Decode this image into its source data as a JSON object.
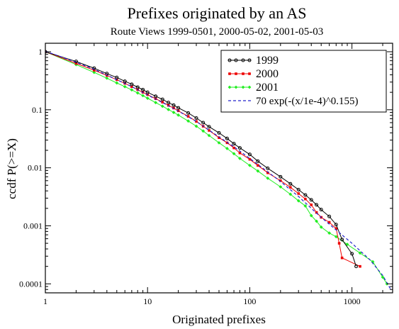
{
  "chart_data": {
    "type": "line",
    "title": "Prefixes originated by an AS",
    "subtitle": "Route Views 1999-0501, 2000-05-02, 2001-05-03",
    "xlabel": "Originated prefixes",
    "ylabel": "ccdf P(>=X)",
    "xscale": "log",
    "yscale": "log",
    "xlim": [
      1,
      2500
    ],
    "ylim": [
      7e-05,
      1.4
    ],
    "xticks": [
      1,
      10,
      100,
      1000
    ],
    "xtick_labels": [
      "1",
      "10",
      "100",
      "1000"
    ],
    "yticks": [
      1,
      0.1,
      0.01,
      0.001,
      0.0001
    ],
    "ytick_labels": [
      "1",
      "0.1",
      "0.01",
      "0.001",
      "0.0001"
    ],
    "grid": false,
    "legend_position": "top-right",
    "series": [
      {
        "name": "1999",
        "color": "#000000",
        "style": "solid-circles",
        "points": [
          [
            1,
            1
          ],
          [
            2,
            0.68
          ],
          [
            3,
            0.52
          ],
          [
            4,
            0.42
          ],
          [
            5,
            0.36
          ],
          [
            6,
            0.31
          ],
          [
            7,
            0.275
          ],
          [
            8,
            0.245
          ],
          [
            9,
            0.222
          ],
          [
            10,
            0.2
          ],
          [
            12,
            0.171
          ],
          [
            14,
            0.151
          ],
          [
            16,
            0.133
          ],
          [
            18,
            0.12
          ],
          [
            20,
            0.108
          ],
          [
            25,
            0.088
          ],
          [
            30,
            0.072
          ],
          [
            35,
            0.06
          ],
          [
            40,
            0.051
          ],
          [
            50,
            0.04
          ],
          [
            60,
            0.032
          ],
          [
            70,
            0.026
          ],
          [
            80,
            0.022
          ],
          [
            100,
            0.017
          ],
          [
            120,
            0.013
          ],
          [
            150,
            0.0098
          ],
          [
            200,
            0.007
          ],
          [
            250,
            0.0053
          ],
          [
            300,
            0.0042
          ],
          [
            350,
            0.0034
          ],
          [
            400,
            0.0028
          ],
          [
            450,
            0.0023
          ],
          [
            500,
            0.0019
          ],
          [
            600,
            0.00145
          ],
          [
            700,
            0.00105
          ],
          [
            800,
            0.00058
          ],
          [
            1000,
            0.00033
          ],
          [
            1100,
            0.0002
          ]
        ]
      },
      {
        "name": "2000",
        "color": "#ee0000",
        "style": "solid-squares",
        "points": [
          [
            1,
            1
          ],
          [
            2,
            0.63
          ],
          [
            3,
            0.48
          ],
          [
            4,
            0.39
          ],
          [
            5,
            0.33
          ],
          [
            6,
            0.285
          ],
          [
            7,
            0.25
          ],
          [
            8,
            0.222
          ],
          [
            9,
            0.2
          ],
          [
            10,
            0.182
          ],
          [
            12,
            0.155
          ],
          [
            14,
            0.135
          ],
          [
            16,
            0.119
          ],
          [
            18,
            0.107
          ],
          [
            20,
            0.096
          ],
          [
            25,
            0.077
          ],
          [
            30,
            0.063
          ],
          [
            35,
            0.052
          ],
          [
            40,
            0.044
          ],
          [
            50,
            0.033
          ],
          [
            60,
            0.027
          ],
          [
            70,
            0.022
          ],
          [
            80,
            0.018
          ],
          [
            100,
            0.014
          ],
          [
            120,
            0.011
          ],
          [
            150,
            0.0082
          ],
          [
            200,
            0.006
          ],
          [
            250,
            0.0046
          ],
          [
            300,
            0.0036
          ],
          [
            350,
            0.0029
          ],
          [
            400,
            0.0023
          ],
          [
            450,
            0.0017
          ],
          [
            500,
            0.0014
          ],
          [
            600,
            0.00115
          ],
          [
            700,
            0.0009
          ],
          [
            750,
            0.0005
          ],
          [
            800,
            0.00028
          ],
          [
            1200,
            0.0002
          ]
        ]
      },
      {
        "name": "2001",
        "color": "#22ee22",
        "style": "solid-diamonds",
        "points": [
          [
            1,
            1
          ],
          [
            2,
            0.6
          ],
          [
            3,
            0.44
          ],
          [
            4,
            0.35
          ],
          [
            5,
            0.29
          ],
          [
            6,
            0.25
          ],
          [
            7,
            0.22
          ],
          [
            8,
            0.195
          ],
          [
            9,
            0.175
          ],
          [
            10,
            0.158
          ],
          [
            12,
            0.133
          ],
          [
            14,
            0.115
          ],
          [
            16,
            0.101
          ],
          [
            18,
            0.09
          ],
          [
            20,
            0.081
          ],
          [
            25,
            0.064
          ],
          [
            30,
            0.052
          ],
          [
            35,
            0.043
          ],
          [
            40,
            0.036
          ],
          [
            50,
            0.027
          ],
          [
            60,
            0.0215
          ],
          [
            70,
            0.0175
          ],
          [
            80,
            0.0145
          ],
          [
            100,
            0.011
          ],
          [
            120,
            0.0088
          ],
          [
            150,
            0.0066
          ],
          [
            200,
            0.0047
          ],
          [
            250,
            0.0035
          ],
          [
            300,
            0.0027
          ],
          [
            350,
            0.0022
          ],
          [
            400,
            0.0015
          ],
          [
            450,
            0.0012
          ],
          [
            500,
            0.00095
          ],
          [
            600,
            0.00075
          ],
          [
            700,
            0.00065
          ],
          [
            900,
            0.00048
          ],
          [
            1200,
            0.00034
          ],
          [
            1600,
            0.00024
          ],
          [
            2000,
            0.00013
          ],
          [
            2200,
            0.0001
          ]
        ]
      },
      {
        "name": "70 exp(-(x/1e-4)^0.155)",
        "color": "#2222cc",
        "style": "dashed",
        "points": [
          [
            1,
            1.02
          ],
          [
            2,
            0.66
          ],
          [
            3,
            0.5
          ],
          [
            5,
            0.33
          ],
          [
            7,
            0.25
          ],
          [
            10,
            0.18
          ],
          [
            15,
            0.125
          ],
          [
            20,
            0.095
          ],
          [
            30,
            0.063
          ],
          [
            50,
            0.034
          ],
          [
            70,
            0.023
          ],
          [
            100,
            0.0145
          ],
          [
            150,
            0.0085
          ],
          [
            200,
            0.0058
          ],
          [
            300,
            0.0032
          ],
          [
            400,
            0.002
          ],
          [
            500,
            0.0014
          ],
          [
            700,
            0.00085
          ],
          [
            1000,
            0.0005
          ],
          [
            1500,
            0.00026
          ],
          [
            2000,
            0.00014
          ],
          [
            2400,
            8e-05
          ]
        ]
      }
    ]
  }
}
